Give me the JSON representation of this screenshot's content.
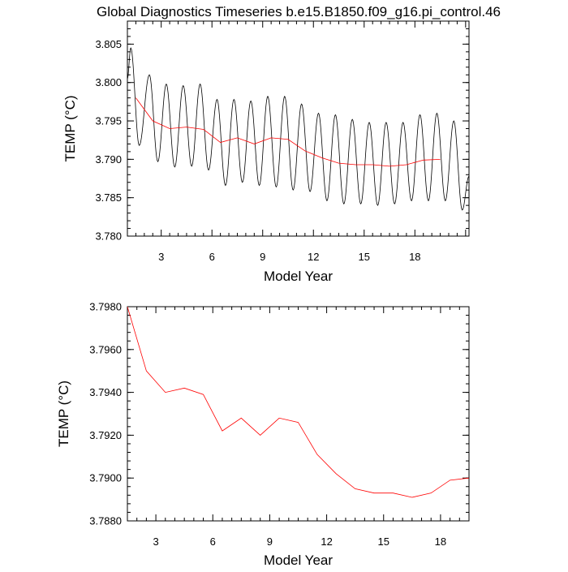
{
  "page": {
    "title": "Global Diagnostics Timeseries b.e15.B1850.f09_g16.pi_control.46"
  },
  "colors": {
    "monthly": "#000000",
    "annual": "#ff0000",
    "frame": "#000000"
  },
  "chart_data": [
    {
      "type": "line",
      "title": "Global Diagnostics Timeseries b.e15.B1850.f09_g16.pi_control.46",
      "xlabel": "Model Year",
      "ylabel": "TEMP (°C)",
      "xlim": [
        1,
        21.2
      ],
      "ylim": [
        3.78,
        3.808
      ],
      "xticks": [
        3,
        6,
        9,
        12,
        15,
        18
      ],
      "xtick_labels": [
        "3",
        "6",
        "9",
        "12",
        "15",
        "18"
      ],
      "yticks": [
        3.78,
        3.785,
        3.79,
        3.795,
        3.8,
        3.805
      ],
      "ytick_labels": [
        "3.780",
        "3.785",
        "3.790",
        "3.795",
        "3.800",
        "3.805"
      ],
      "grid": false,
      "series": [
        {
          "style": "seasonal-cycle",
          "color": "#000000",
          "period_years": 1,
          "start_year": 1,
          "maxima": [
            [
              1.2,
              3.8045
            ],
            [
              2.3,
              3.801
            ],
            [
              3.3,
              3.7998
            ],
            [
              4.3,
              3.7996
            ],
            [
              5.3,
              3.7998
            ],
            [
              6.3,
              3.7978
            ],
            [
              7.3,
              3.7978
            ],
            [
              8.3,
              3.7976
            ],
            [
              9.3,
              3.7982
            ],
            [
              10.3,
              3.7982
            ],
            [
              11.3,
              3.7972
            ],
            [
              12.3,
              3.796
            ],
            [
              13.3,
              3.7958
            ],
            [
              14.3,
              3.7952
            ],
            [
              15.3,
              3.7948
            ],
            [
              16.3,
              3.7948
            ],
            [
              17.3,
              3.7948
            ],
            [
              18.3,
              3.7958
            ],
            [
              19.3,
              3.796
            ],
            [
              20.3,
              3.795
            ]
          ],
          "minima": [
            [
              1.7,
              3.7918
            ],
            [
              2.8,
              3.7897
            ],
            [
              3.8,
              3.789
            ],
            [
              4.8,
              3.7891
            ],
            [
              5.8,
              3.7886
            ],
            [
              6.8,
              3.7866
            ],
            [
              7.8,
              3.787
            ],
            [
              8.8,
              3.7866
            ],
            [
              9.8,
              3.7864
            ],
            [
              10.8,
              3.786
            ],
            [
              11.8,
              3.7858
            ],
            [
              12.8,
              3.7846
            ],
            [
              13.8,
              3.7842
            ],
            [
              14.8,
              3.7842
            ],
            [
              15.8,
              3.784
            ],
            [
              16.8,
              3.7842
            ],
            [
              17.8,
              3.7846
            ],
            [
              18.8,
              3.7846
            ],
            [
              19.8,
              3.7846
            ],
            [
              20.8,
              3.7834
            ]
          ],
          "end": [
            21.2,
            3.7878
          ]
        },
        {
          "style": "annual-mean",
          "color": "#ff0000",
          "x": [
            1.5,
            2.5,
            3.5,
            4.5,
            5.5,
            6.5,
            7.5,
            8.5,
            9.5,
            10.5,
            11.5,
            12.5,
            13.5,
            14.5,
            15.5,
            16.5,
            17.5,
            18.5,
            19.5
          ],
          "y": [
            3.798,
            3.795,
            3.794,
            3.7942,
            3.7939,
            3.7922,
            3.7928,
            3.792,
            3.7928,
            3.7926,
            3.7911,
            3.7902,
            3.7895,
            3.7893,
            3.7893,
            3.7891,
            3.7893,
            3.7899,
            3.79
          ]
        }
      ]
    },
    {
      "type": "line",
      "xlabel": "Model Year",
      "ylabel": "TEMP (°C)",
      "xlim": [
        1.5,
        19.5
      ],
      "ylim": [
        3.788,
        3.798
      ],
      "xticks": [
        3,
        6,
        9,
        12,
        15,
        18
      ],
      "xtick_labels": [
        "3",
        "6",
        "9",
        "12",
        "15",
        "18"
      ],
      "yticks": [
        3.788,
        3.79,
        3.792,
        3.794,
        3.796,
        3.798
      ],
      "ytick_labels": [
        "3.7880",
        "3.7900",
        "3.7920",
        "3.7940",
        "3.7960",
        "3.7980"
      ],
      "grid": false,
      "series": [
        {
          "style": "annual-mean",
          "color": "#ff0000",
          "x": [
            1.5,
            2.5,
            3.5,
            4.5,
            5.5,
            6.5,
            7.5,
            8.5,
            9.5,
            10.5,
            11.5,
            12.5,
            13.5,
            14.5,
            15.5,
            16.5,
            17.5,
            18.5,
            19.5
          ],
          "y": [
            3.798,
            3.795,
            3.794,
            3.7942,
            3.7939,
            3.7922,
            3.7928,
            3.792,
            3.7928,
            3.7926,
            3.7911,
            3.7902,
            3.7895,
            3.7893,
            3.7893,
            3.7891,
            3.7893,
            3.7899,
            3.79
          ]
        }
      ]
    }
  ]
}
